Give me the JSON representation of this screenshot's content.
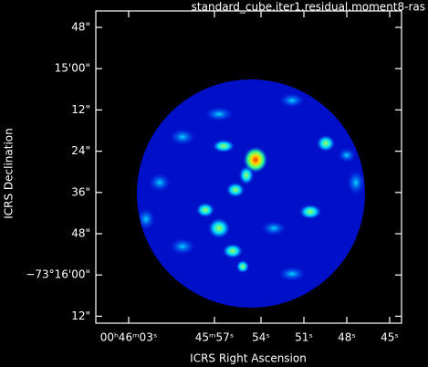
{
  "chart_data": {
    "type": "image",
    "title": "standard_cube.iter1.residual.moment8-ras",
    "x_label": "ICRS Right Ascension",
    "y_label": "ICRS Declination",
    "xtick_labels": [
      "00ʰ46ᵐ03ˢ",
      "45ᵐ57ˢ",
      "54ˢ",
      "51ˢ",
      "48ˢ",
      "45ˢ"
    ],
    "ytick_labels": [
      "48\"",
      "15'00\"",
      "12\"",
      "24\"",
      "36\"",
      "48\"",
      "−73°16'00\"",
      "12\""
    ]
  }
}
